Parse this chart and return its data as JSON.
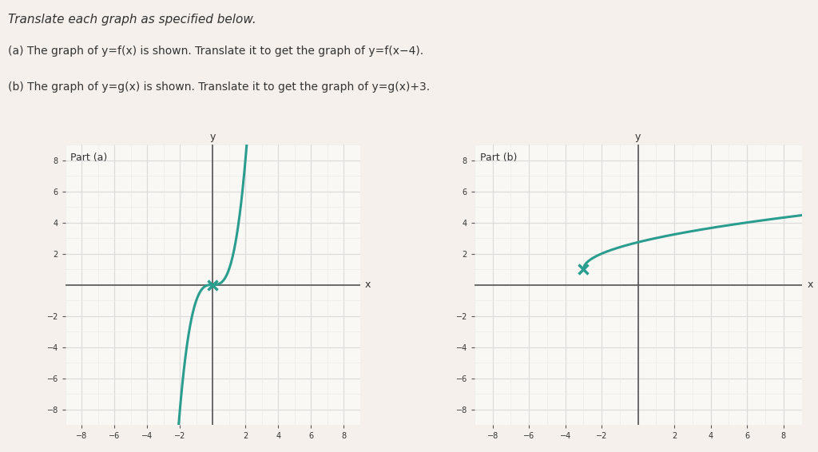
{
  "title_text": "Translate each graph as specified below.",
  "subtitle_a": "(a) The graph of y=f(x) is shown. Translate it to get the graph of y=f(x−4).",
  "subtitle_b": "(b) The graph of y=g(x) is shown. Translate it to get the graph of y=g(x)+3.",
  "part_a_label": "Part (a)",
  "part_b_label": "Part (b)",
  "xlim": [
    -9,
    9
  ],
  "ylim": [
    -9,
    9
  ],
  "xticks": [
    -8,
    -6,
    -4,
    -2,
    2,
    4,
    6,
    8
  ],
  "yticks": [
    -8,
    -6,
    -4,
    -2,
    2,
    4,
    6,
    8
  ],
  "curve_color": "#2a9d8f",
  "marker_color": "#2a9d8f",
  "grid_major_color": "#cccccc",
  "grid_minor_color": "#e8e8e8",
  "background_color": "#f5f0eb",
  "panel_bg": "#faf8f5",
  "axis_color": "#555555",
  "text_color": "#333333",
  "f_inflection_x": 0,
  "f_inflection_y": 0,
  "g_start_x": -3,
  "g_start_y": 1
}
